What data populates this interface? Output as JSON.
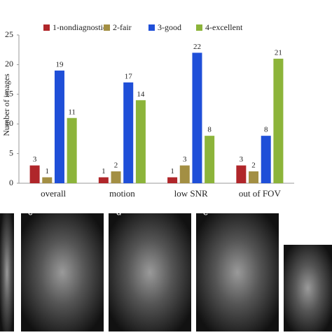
{
  "chart_data": {
    "type": "bar",
    "y_label": "Number of images",
    "categories": [
      "overall",
      "motion",
      "low SNR",
      "out of FOV"
    ],
    "series": [
      {
        "name": "1-nondiagnostic",
        "color": "#b0262a",
        "values": [
          3,
          1,
          1,
          3
        ]
      },
      {
        "name": "2-fair",
        "color": "#a38f43",
        "values": [
          1,
          2,
          3,
          2
        ]
      },
      {
        "name": "3-good",
        "color": "#1f4fd8",
        "values": [
          19,
          17,
          22,
          8
        ]
      },
      {
        "name": "4-excellent",
        "color": "#8cb43a",
        "values": [
          11,
          14,
          8,
          21
        ]
      }
    ],
    "ylim": [
      0,
      25
    ],
    "yticks": [
      0,
      5,
      10,
      15,
      20,
      25
    ],
    "grid": false
  },
  "panels": [
    {
      "label": "c"
    },
    {
      "label": "d"
    },
    {
      "label": "e"
    }
  ]
}
